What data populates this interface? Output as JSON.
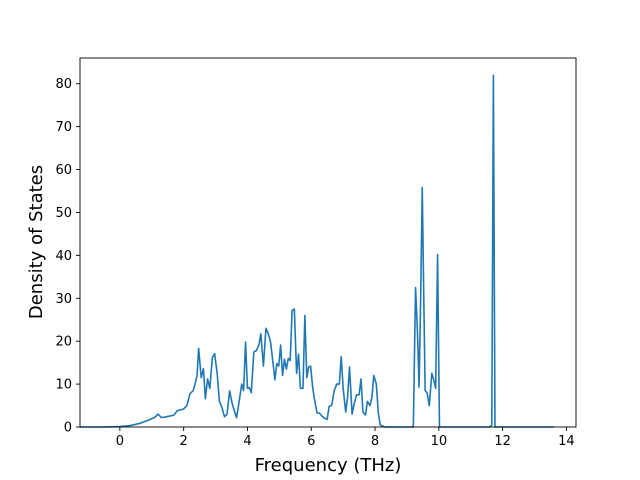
{
  "chart_data": {
    "type": "line",
    "title": "",
    "xlabel": "Frequency (THz)",
    "ylabel": "Density of States",
    "xlim": [
      -1.25,
      14.3
    ],
    "ylim": [
      0,
      86
    ],
    "x_ticks": [
      0,
      2,
      4,
      6,
      8,
      10,
      12,
      14
    ],
    "y_ticks": [
      0,
      10,
      20,
      30,
      40,
      50,
      60,
      70,
      80
    ],
    "grid": false,
    "legend": "none",
    "series": [
      {
        "color": "#1f77b4",
        "points": [
          [
            -1.25,
            0
          ],
          [
            -0.5,
            0
          ],
          [
            0,
            0.1
          ],
          [
            0.3,
            0.3
          ],
          [
            0.6,
            0.8
          ],
          [
            0.9,
            1.6
          ],
          [
            1.1,
            2.3
          ],
          [
            1.2,
            3.0
          ],
          [
            1.3,
            2.2
          ],
          [
            1.4,
            2.3
          ],
          [
            1.6,
            2.6
          ],
          [
            1.7,
            2.8
          ],
          [
            1.8,
            3.8
          ],
          [
            1.9,
            4.0
          ],
          [
            2.0,
            4.2
          ],
          [
            2.1,
            5.0
          ],
          [
            2.2,
            7.8
          ],
          [
            2.3,
            8.5
          ],
          [
            2.35,
            9.8
          ],
          [
            2.42,
            12.0
          ],
          [
            2.47,
            18.3
          ],
          [
            2.55,
            11.5
          ],
          [
            2.62,
            13.6
          ],
          [
            2.68,
            6.6
          ],
          [
            2.75,
            11.2
          ],
          [
            2.82,
            9.0
          ],
          [
            2.9,
            16.2
          ],
          [
            2.97,
            17.1
          ],
          [
            3.05,
            12.5
          ],
          [
            3.12,
            6.0
          ],
          [
            3.2,
            4.5
          ],
          [
            3.28,
            2.4
          ],
          [
            3.36,
            3.0
          ],
          [
            3.44,
            8.4
          ],
          [
            3.52,
            5.5
          ],
          [
            3.6,
            3.5
          ],
          [
            3.66,
            2.2
          ],
          [
            3.74,
            6.0
          ],
          [
            3.82,
            10.0
          ],
          [
            3.88,
            8.5
          ],
          [
            3.94,
            19.8
          ],
          [
            4.0,
            9.0
          ],
          [
            4.06,
            9.2
          ],
          [
            4.12,
            8.0
          ],
          [
            4.2,
            17.5
          ],
          [
            4.28,
            17.8
          ],
          [
            4.36,
            19.2
          ],
          [
            4.42,
            21.7
          ],
          [
            4.5,
            14.2
          ],
          [
            4.58,
            23.0
          ],
          [
            4.64,
            22.0
          ],
          [
            4.72,
            20.0
          ],
          [
            4.8,
            15.0
          ],
          [
            4.86,
            11.0
          ],
          [
            4.92,
            14.8
          ],
          [
            4.98,
            14.2
          ],
          [
            5.04,
            19.1
          ],
          [
            5.1,
            12.0
          ],
          [
            5.16,
            15.8
          ],
          [
            5.22,
            13.5
          ],
          [
            5.28,
            16.0
          ],
          [
            5.34,
            15.5
          ],
          [
            5.4,
            27.2
          ],
          [
            5.47,
            27.5
          ],
          [
            5.54,
            12.5
          ],
          [
            5.6,
            17.0
          ],
          [
            5.66,
            9.0
          ],
          [
            5.74,
            9.0
          ],
          [
            5.8,
            26.0
          ],
          [
            5.86,
            11.5
          ],
          [
            5.92,
            14.0
          ],
          [
            5.98,
            14.2
          ],
          [
            6.04,
            9.5
          ],
          [
            6.1,
            6.5
          ],
          [
            6.18,
            3.3
          ],
          [
            6.26,
            3.2
          ],
          [
            6.34,
            2.5
          ],
          [
            6.42,
            2.0
          ],
          [
            6.5,
            1.8
          ],
          [
            6.56,
            4.8
          ],
          [
            6.64,
            5.0
          ],
          [
            6.72,
            8.5
          ],
          [
            6.8,
            10.0
          ],
          [
            6.88,
            10.0
          ],
          [
            6.94,
            16.4
          ],
          [
            7.0,
            9.0
          ],
          [
            7.08,
            3.5
          ],
          [
            7.14,
            7.0
          ],
          [
            7.2,
            14.0
          ],
          [
            7.28,
            3.0
          ],
          [
            7.34,
            5.2
          ],
          [
            7.42,
            7.5
          ],
          [
            7.5,
            7.5
          ],
          [
            7.56,
            11.2
          ],
          [
            7.62,
            3.5
          ],
          [
            7.7,
            2.8
          ],
          [
            7.76,
            6.0
          ],
          [
            7.84,
            5.0
          ],
          [
            7.9,
            6.8
          ],
          [
            7.96,
            12.0
          ],
          [
            8.04,
            10.0
          ],
          [
            8.1,
            3.5
          ],
          [
            8.16,
            0.5
          ],
          [
            8.3,
            0
          ],
          [
            8.6,
            0
          ],
          [
            9.0,
            0
          ],
          [
            9.2,
            0
          ],
          [
            9.27,
            32.5
          ],
          [
            9.33,
            22.0
          ],
          [
            9.38,
            9.3
          ],
          [
            9.43,
            30.0
          ],
          [
            9.48,
            55.8
          ],
          [
            9.53,
            29.0
          ],
          [
            9.57,
            8.5
          ],
          [
            9.63,
            8.0
          ],
          [
            9.7,
            5.0
          ],
          [
            9.78,
            12.5
          ],
          [
            9.84,
            11.0
          ],
          [
            9.9,
            9.0
          ],
          [
            9.96,
            40.2
          ],
          [
            10.02,
            0
          ],
          [
            10.5,
            0
          ],
          [
            11.0,
            0
          ],
          [
            11.6,
            0
          ],
          [
            11.66,
            0.5
          ],
          [
            11.71,
            82.0
          ],
          [
            11.76,
            0
          ],
          [
            12.2,
            0
          ],
          [
            13.0,
            0
          ],
          [
            13.6,
            0
          ]
        ]
      }
    ]
  }
}
